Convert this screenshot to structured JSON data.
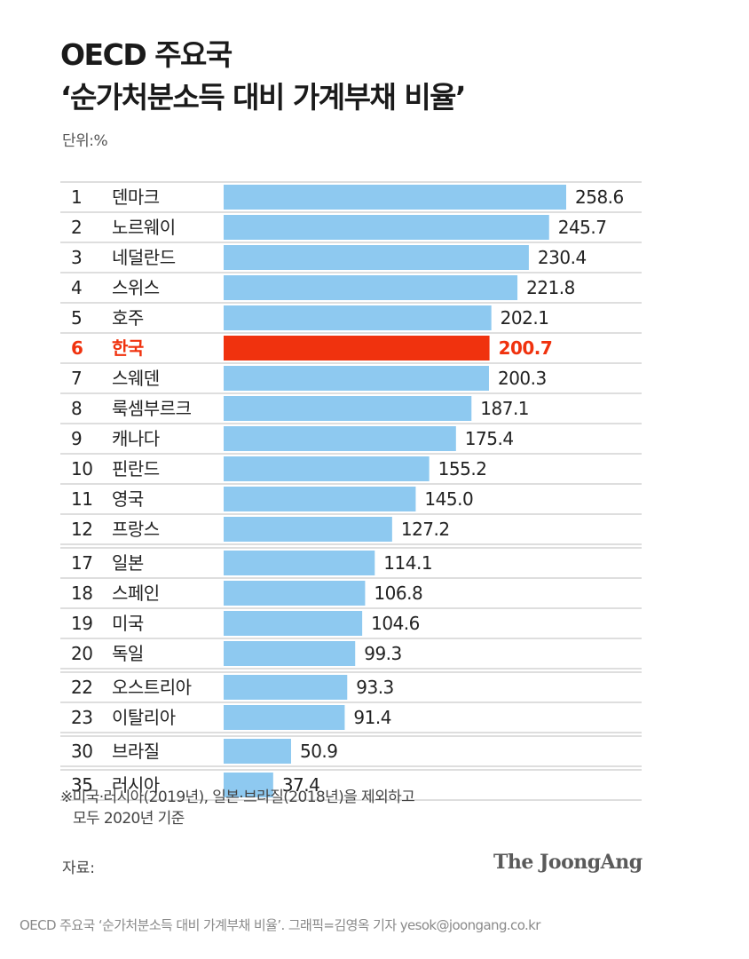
{
  "chart_data": {
    "type": "bar",
    "orientation": "horizontal",
    "title": [
      "OECD 주요국",
      "‘순가처분소득 대비 가계부채 비율’"
    ],
    "unit_label": "단위:%",
    "ranks": [
      "1",
      "2",
      "3",
      "4",
      "5",
      "6",
      "7",
      "8",
      "9",
      "10",
      "11",
      "12",
      "17",
      "18",
      "19",
      "20",
      "22",
      "23",
      "30",
      "35"
    ],
    "categories": [
      "덴마크",
      "노르웨이",
      "네덜란드",
      "스위스",
      "호주",
      "한국",
      "스웨덴",
      "룩셈부르크",
      "캐나다",
      "핀란드",
      "영국",
      "프랑스",
      "일본",
      "스페인",
      "미국",
      "독일",
      "오스트리아",
      "이탈리아",
      "브라질",
      "러시아"
    ],
    "values": [
      258.6,
      245.7,
      230.4,
      221.8,
      202.1,
      200.7,
      200.3,
      187.1,
      175.4,
      155.2,
      145.0,
      127.2,
      114.1,
      106.8,
      104.6,
      99.3,
      93.3,
      91.4,
      50.9,
      37.4
    ],
    "value_labels": [
      "258.6",
      "245.7",
      "230.4",
      "221.8",
      "202.1",
      "200.7",
      "200.3",
      "187.1",
      "175.4",
      "155.2",
      "145.0",
      "127.2",
      "114.1",
      "106.8",
      "104.6",
      "99.3",
      "93.3",
      "91.4",
      "50.9",
      "37.4"
    ],
    "highlight": "한국",
    "xlim": [
      0,
      258.6
    ],
    "grid": false,
    "colors": {
      "bar": "#8ec9f0",
      "highlight": "#f0320e",
      "highlight_text": "#f0320e",
      "text": "#222222",
      "divider": "#bdbdbd"
    }
  },
  "footnote": [
    "※미국·러시아(2019년), 일본·브라질(2018년)을 제외하고",
    "모두 2020년 기준"
  ],
  "source_label": "자료:",
  "logo_text": "The JoongAng",
  "caption": "OECD 주요국 ‘순가처분소득 대비 가계부채 비율’. 그래픽=김영옥 기자 yesok@joongang.co.kr"
}
